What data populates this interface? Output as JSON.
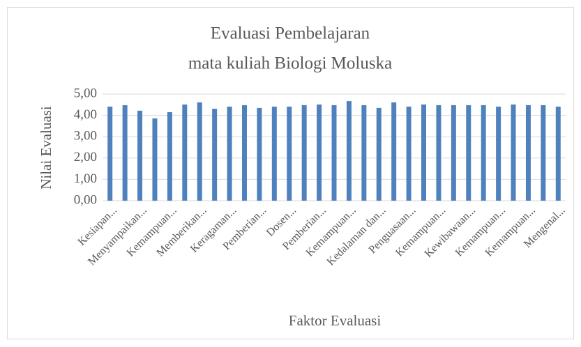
{
  "chart_data": {
    "type": "bar",
    "title": [
      "Evaluasi Pembelajaran",
      "mata kuliah Biologi Moluska"
    ],
    "x_label": "Faktor Evaluasi",
    "y_label": "Nilai Evaluasi",
    "categories": [
      "Kesiapan...",
      null,
      "Menyampaikan...",
      null,
      "Kemampuan...",
      null,
      "Memberikan...",
      null,
      "Keragaman...",
      null,
      "Pemberian...",
      null,
      "Dosen...",
      null,
      "Pemberian...",
      null,
      "Kemampuan...",
      null,
      "Kedalaman dan...",
      null,
      "Penguasaan...",
      null,
      "Kemampuan...",
      null,
      "Kewibawaan...",
      null,
      "Kemampuan...",
      null,
      "Kemampuan...",
      null,
      "Mengenal..."
    ],
    "values": [
      4.41,
      4.48,
      4.22,
      3.86,
      4.15,
      4.51,
      4.61,
      4.31,
      4.41,
      4.48,
      4.35,
      4.41,
      4.41,
      4.48,
      4.51,
      4.48,
      4.67,
      4.48,
      4.35,
      4.61,
      4.41,
      4.51,
      4.48,
      4.48,
      4.48,
      4.48,
      4.41,
      4.51,
      4.48,
      4.48,
      4.41
    ],
    "color": "#4f81bd",
    "ylim": [
      0,
      5
    ],
    "yticks": [
      {
        "value": 0,
        "label": "0,00"
      },
      {
        "value": 1,
        "label": "1,00"
      },
      {
        "value": 2,
        "label": "2,00"
      },
      {
        "value": 3,
        "label": "3,00"
      },
      {
        "value": 4,
        "label": "4,00"
      },
      {
        "value": 5,
        "label": "5,00"
      }
    ],
    "grid": true
  }
}
